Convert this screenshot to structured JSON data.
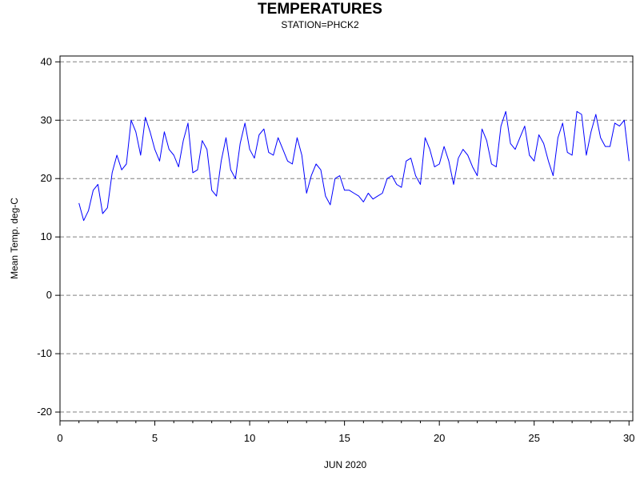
{
  "chart_data": {
    "type": "line",
    "title": "TEMPERATURES",
    "subtitle": "STATION=PHCK2",
    "xlabel": "JUN 2020",
    "ylabel": "Mean Temp. deg-C",
    "xlim": [
      0,
      30.2
    ],
    "ylim": [
      -21.5,
      41
    ],
    "xticks": [
      0,
      5,
      10,
      15,
      20,
      25,
      30
    ],
    "yticks": [
      -20,
      -10,
      0,
      10,
      20,
      30,
      40
    ],
    "grid": "horizontal dashed",
    "series": [
      {
        "color": "#0000ff",
        "x": [
          1.0,
          1.25,
          1.5,
          1.75,
          2.0,
          2.25,
          2.5,
          2.75,
          3.0,
          3.25,
          3.5,
          3.75,
          4.0,
          4.25,
          4.5,
          4.75,
          5.0,
          5.25,
          5.5,
          5.75,
          6.0,
          6.25,
          6.5,
          6.75,
          7.0,
          7.25,
          7.5,
          7.75,
          8.0,
          8.25,
          8.5,
          8.75,
          9.0,
          9.25,
          9.5,
          9.75,
          10.0,
          10.25,
          10.5,
          10.75,
          11.0,
          11.25,
          11.5,
          11.75,
          12.0,
          12.25,
          12.5,
          12.75,
          13.0,
          13.25,
          13.5,
          13.75,
          14.0,
          14.25,
          14.5,
          14.75,
          15.0,
          15.25,
          15.5,
          15.75,
          16.0,
          16.25,
          16.5,
          16.75,
          17.0,
          17.25,
          17.5,
          17.75,
          18.0,
          18.25,
          18.5,
          18.75,
          19.0,
          19.25,
          19.5,
          19.75,
          20.0,
          20.25,
          20.5,
          20.75,
          21.0,
          21.25,
          21.5,
          21.75,
          22.0,
          22.25,
          22.5,
          22.75,
          23.0,
          23.25,
          23.5,
          23.75,
          24.0,
          24.25,
          24.5,
          24.75,
          25.0,
          25.25,
          25.5,
          25.75,
          26.0,
          26.25,
          26.5,
          26.75,
          27.0,
          27.25,
          27.5,
          27.75,
          28.0,
          28.25,
          28.5,
          28.75,
          29.0,
          29.25,
          29.5,
          29.75,
          30.0
        ],
        "y": [
          15.8,
          12.8,
          14.5,
          18.0,
          19.0,
          14.0,
          15.0,
          21.0,
          24.0,
          21.5,
          22.5,
          30.0,
          28.0,
          24.0,
          30.5,
          28.0,
          25.0,
          23.0,
          28.0,
          25.0,
          24.0,
          22.0,
          26.5,
          29.5,
          21.0,
          21.5,
          26.5,
          25.0,
          18.0,
          17.0,
          23.0,
          27.0,
          21.5,
          20.0,
          26.0,
          29.5,
          25.0,
          23.5,
          27.5,
          28.5,
          24.5,
          24.0,
          27.0,
          25.0,
          23.0,
          22.5,
          27.0,
          24.0,
          17.5,
          20.5,
          22.5,
          21.5,
          17.0,
          15.5,
          20.0,
          20.5,
          18.0,
          18.0,
          17.5,
          17.0,
          16.0,
          17.5,
          16.5,
          17.0,
          17.5,
          20.0,
          20.5,
          19.0,
          18.5,
          23.0,
          23.5,
          20.5,
          19.0,
          27.0,
          25.0,
          22.0,
          22.5,
          25.5,
          23.0,
          19.0,
          23.5,
          25.0,
          24.0,
          22.0,
          20.5,
          28.5,
          26.5,
          22.5,
          22.0,
          29.0,
          31.5,
          26.0,
          25.0,
          27.0,
          29.0,
          24.0,
          23.0,
          27.5,
          26.0,
          23.0,
          20.5,
          27.0,
          29.5,
          24.5,
          24.0,
          31.5,
          31.0,
          24.0,
          28.0,
          31.0,
          27.0,
          25.5,
          25.5,
          29.5,
          29.0,
          30.0,
          23.0
        ]
      }
    ]
  }
}
